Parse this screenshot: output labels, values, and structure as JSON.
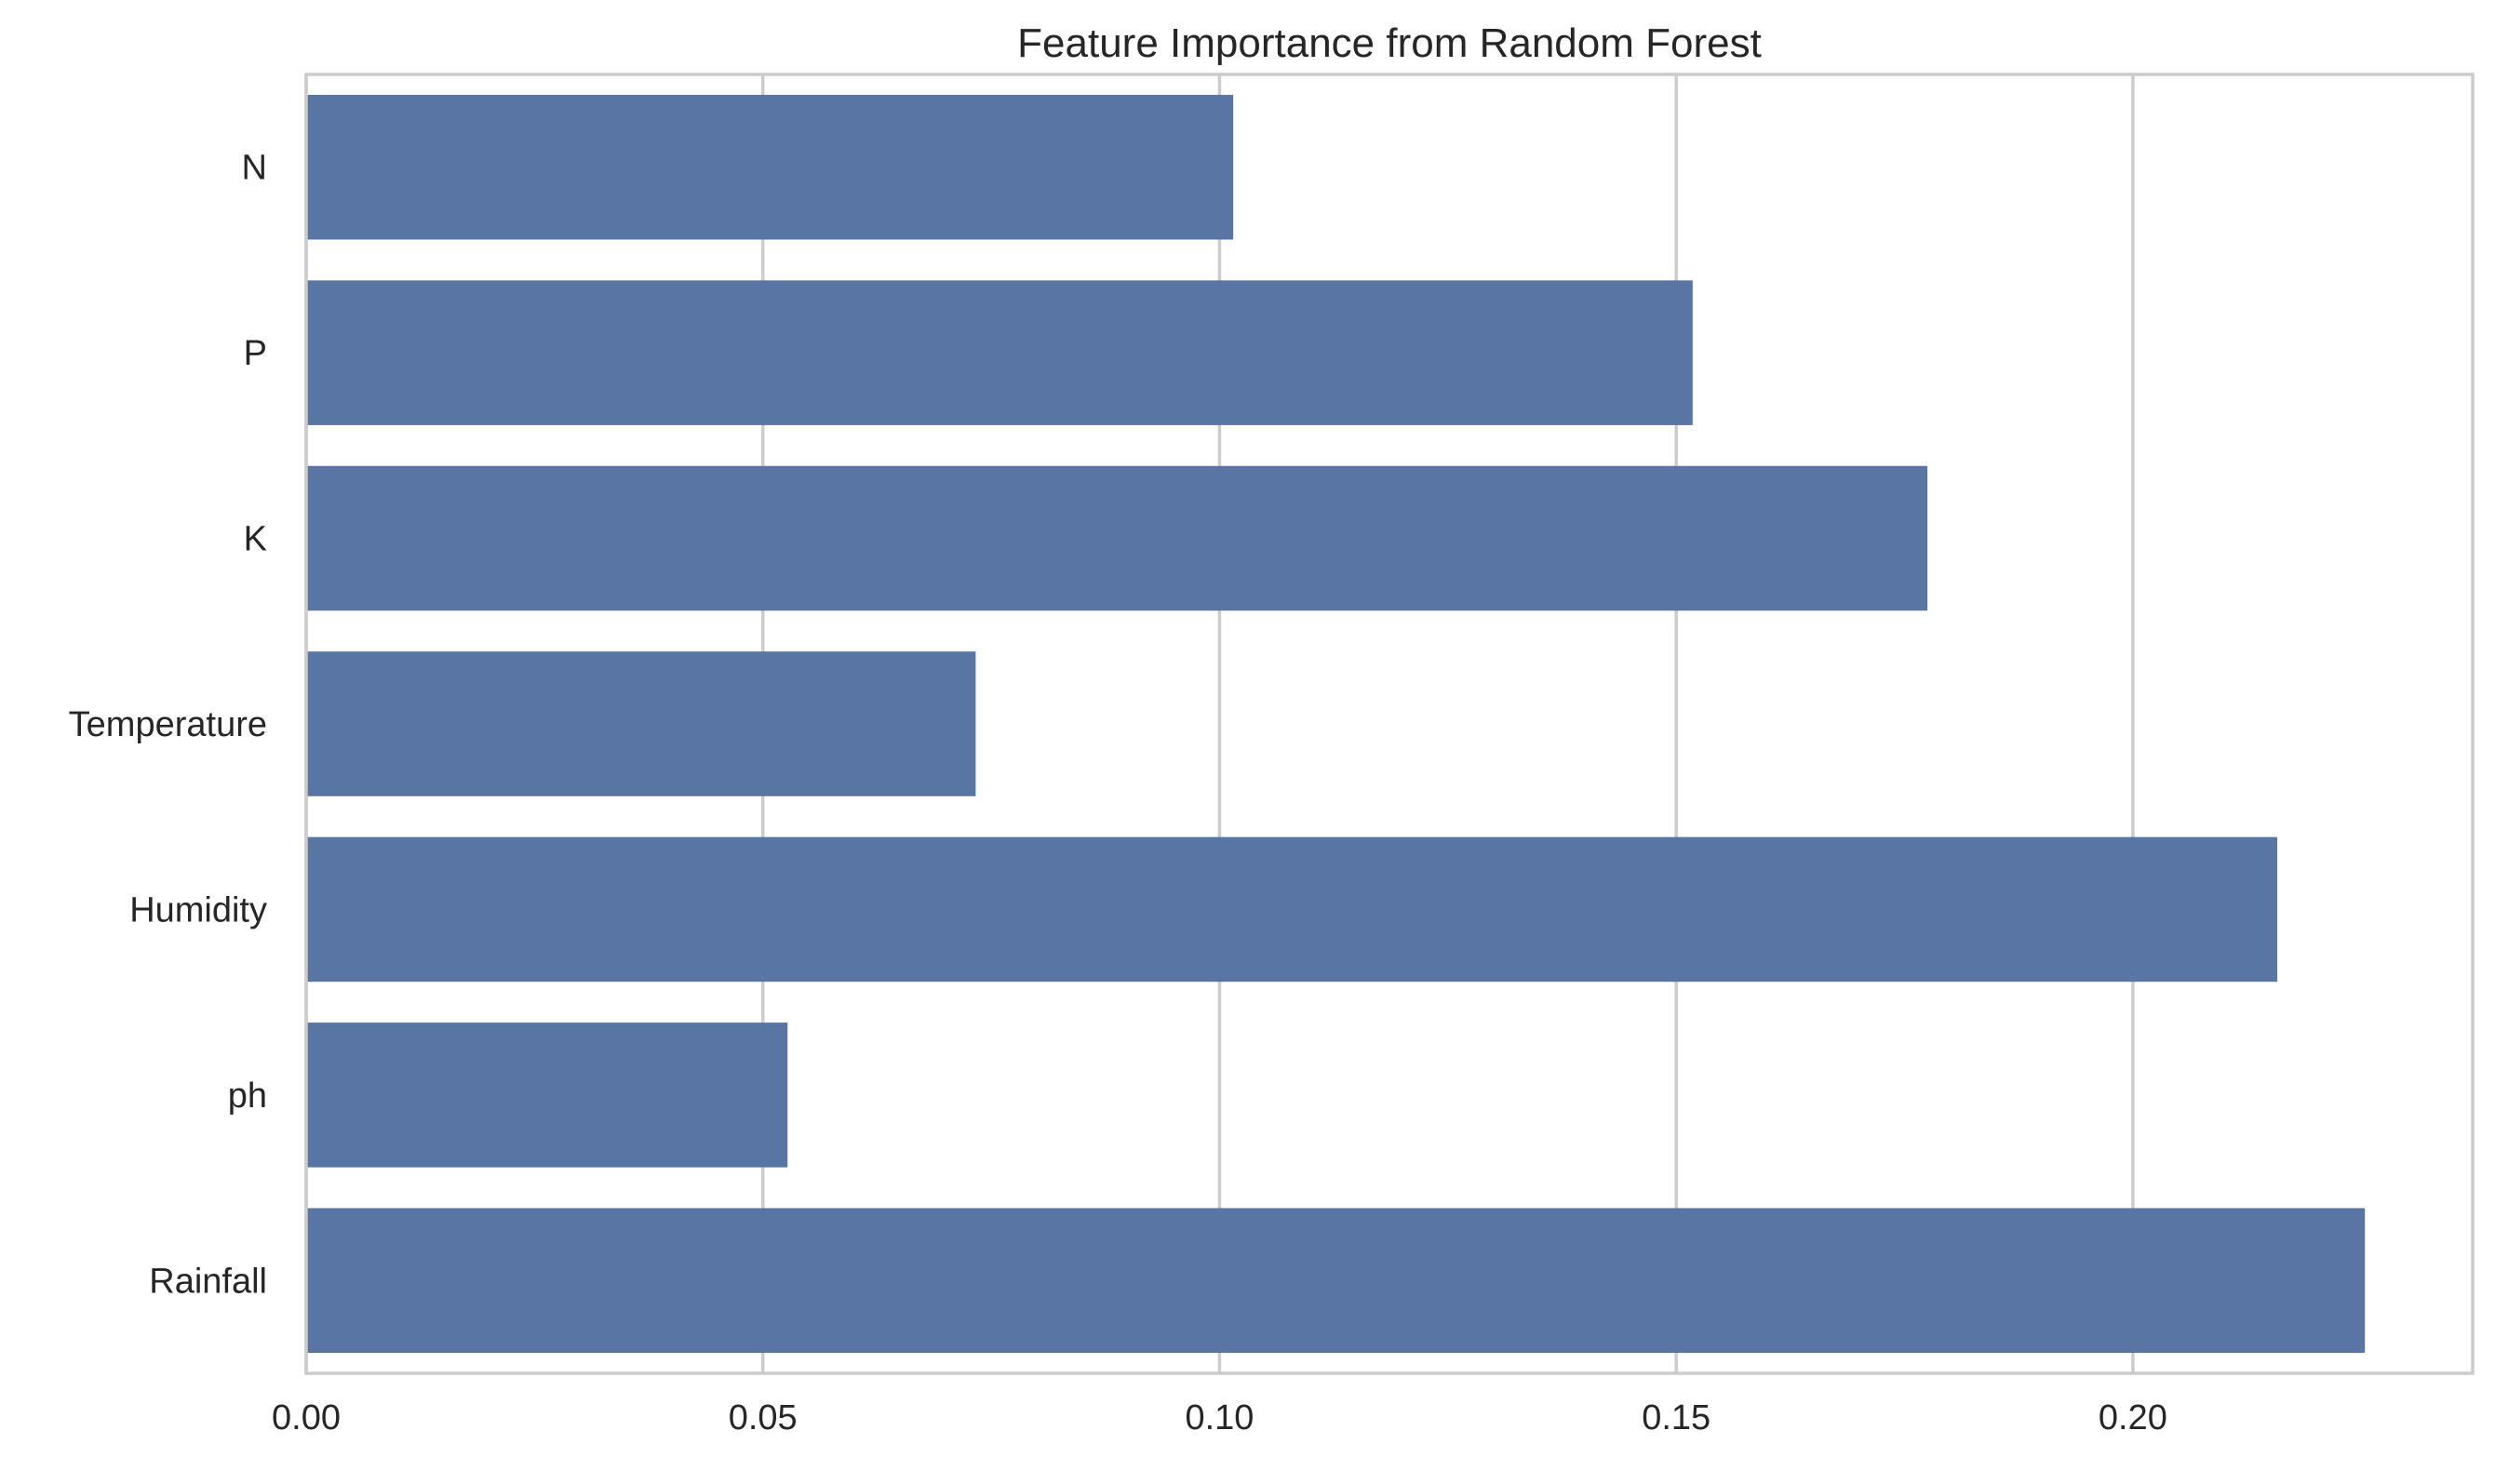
{
  "chart_data": {
    "type": "bar",
    "orientation": "horizontal",
    "title": "Feature Importance from Random Forest",
    "xlabel": "",
    "ylabel": "",
    "categories": [
      "N",
      "P",
      "K",
      "Temperature",
      "Humidity",
      "ph",
      "Rainfall"
    ],
    "values": [
      0.1015,
      0.1518,
      0.1775,
      0.0733,
      0.2158,
      0.0527,
      0.2254
    ],
    "xlim": [
      0.0,
      0.2372
    ],
    "xticks": [
      0.0,
      0.05,
      0.1,
      0.15,
      0.2
    ],
    "xtick_labels": [
      "0.00",
      "0.05",
      "0.10",
      "0.15",
      "0.20"
    ],
    "grid": "vertical",
    "legend": "none",
    "colors": {
      "bar": "#5975a4",
      "grid": "#cccccc",
      "spine": "#cccccc",
      "text": "#262626",
      "background": "#ffffff"
    }
  }
}
